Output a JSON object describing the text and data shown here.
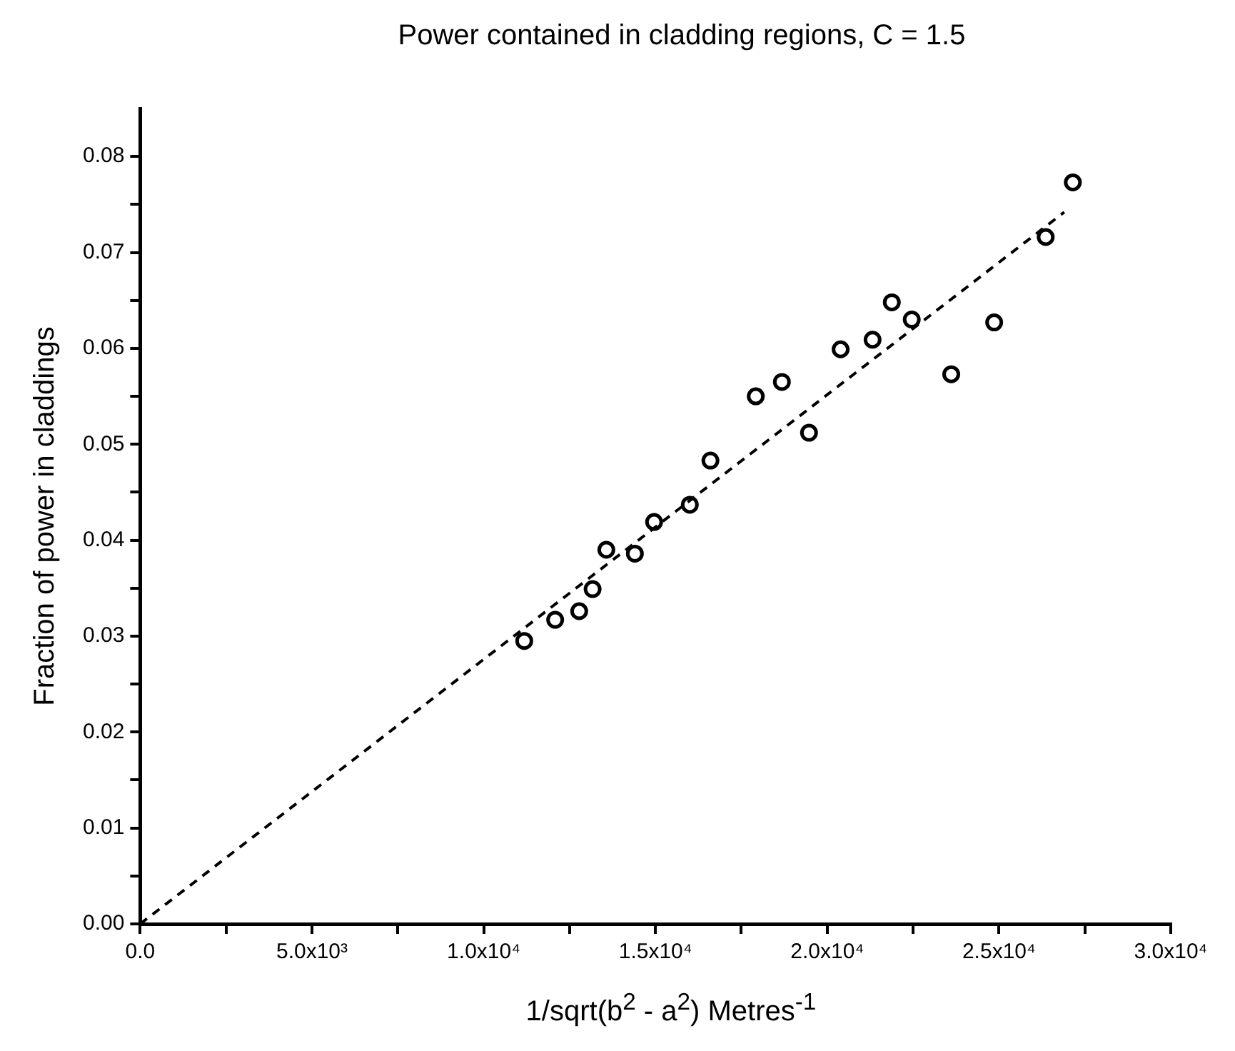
{
  "chart_data": {
    "type": "scatter",
    "title": "Power contained in cladding regions, C = 1.5",
    "xlabel": "1/sqrt(b$^{2}$ - a$^{2}$)  Metres$^{-1}$",
    "ylabel": "Fraction of power in claddings",
    "xlim": [
      0,
      30000
    ],
    "ylim": [
      0,
      0.085
    ],
    "xticks": [
      {
        "value": 0,
        "label": "0.0"
      },
      {
        "value": 2500,
        "label": null
      },
      {
        "value": 5000,
        "label": "5.0x10³"
      },
      {
        "value": 7500,
        "label": null
      },
      {
        "value": 10000,
        "label": "1.0x10⁴"
      },
      {
        "value": 12500,
        "label": null
      },
      {
        "value": 15000,
        "label": "1.5x10⁴"
      },
      {
        "value": 17500,
        "label": null
      },
      {
        "value": 20000,
        "label": "2.0x10⁴"
      },
      {
        "value": 22500,
        "label": null
      },
      {
        "value": 25000,
        "label": "2.5x10⁴"
      },
      {
        "value": 27500,
        "label": null
      },
      {
        "value": 30000,
        "label": "3.0x10⁴"
      }
    ],
    "yticks": [
      {
        "value": 0,
        "label": "0.00"
      },
      {
        "value": 0.005,
        "label": null
      },
      {
        "value": 0.01,
        "label": "0.01"
      },
      {
        "value": 0.015,
        "label": null
      },
      {
        "value": 0.02,
        "label": "0.02"
      },
      {
        "value": 0.025,
        "label": null
      },
      {
        "value": 0.03,
        "label": "0.03"
      },
      {
        "value": 0.035,
        "label": null
      },
      {
        "value": 0.04,
        "label": "0.04"
      },
      {
        "value": 0.045,
        "label": null
      },
      {
        "value": 0.05,
        "label": "0.05"
      },
      {
        "value": 0.055,
        "label": null
      },
      {
        "value": 0.06,
        "label": "0.06"
      },
      {
        "value": 0.065,
        "label": null
      },
      {
        "value": 0.07,
        "label": "0.07"
      },
      {
        "value": 0.075,
        "label": null
      },
      {
        "value": 0.08,
        "label": "0.08"
      }
    ],
    "grid": false,
    "legend": false,
    "marker": "circle",
    "series": [
      {
        "type": "scatter",
        "color": "#000000",
        "x": [
          11180,
          12080,
          12780,
          13170,
          13570,
          14400,
          14960,
          16000,
          16600,
          17920,
          18680,
          19470,
          20390,
          21320,
          21880,
          22460,
          23610,
          24860,
          26360,
          27150
        ],
        "values": [
          0.0295,
          0.0317,
          0.0326,
          0.0349,
          0.039,
          0.0386,
          0.0419,
          0.0437,
          0.0483,
          0.055,
          0.0565,
          0.0512,
          0.0599,
          0.0609,
          0.0648,
          0.063,
          0.0573,
          0.0627,
          0.0716,
          0.0773
        ]
      },
      {
        "type": "line",
        "color": "#000000",
        "line_style": "dashed",
        "marker": "none",
        "x": [
          0,
          26900
        ],
        "values": [
          0,
          0.0742
        ]
      }
    ]
  }
}
